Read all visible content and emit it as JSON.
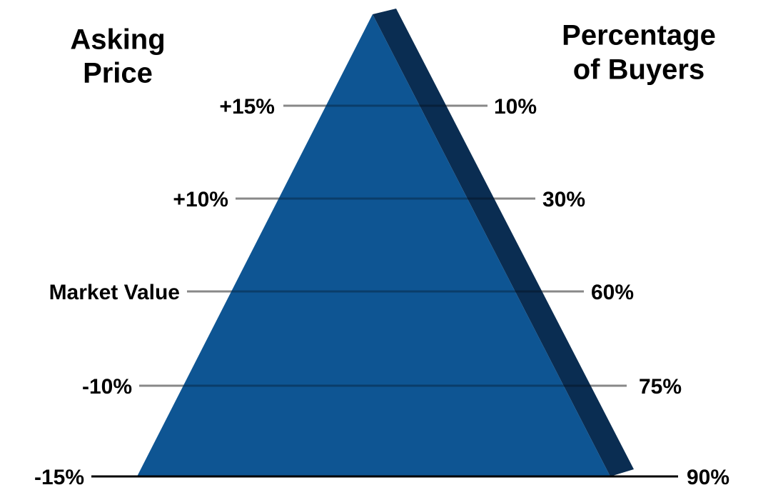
{
  "left_title": [
    "Asking",
    "Price"
  ],
  "right_title": [
    "Percentage",
    "of Buyers"
  ],
  "levels": [
    {
      "price": "+15%",
      "buyers": "10%"
    },
    {
      "price": "+10%",
      "buyers": "30%"
    },
    {
      "price": "Market Value",
      "buyers": "60%"
    },
    {
      "price": "-10%",
      "buyers": "75%"
    },
    {
      "price": "-15%",
      "buyers": "90%"
    }
  ]
}
